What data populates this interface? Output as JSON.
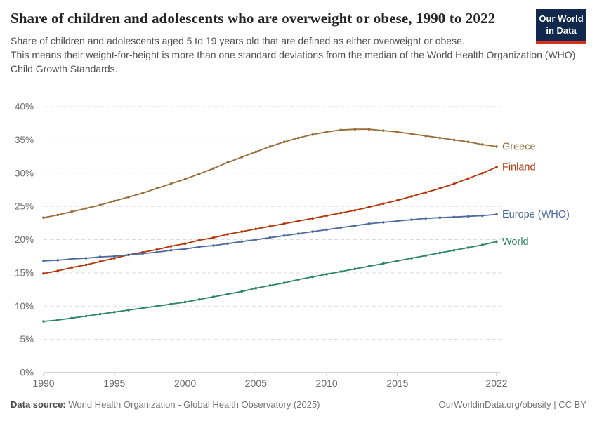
{
  "header": {
    "title": "Share of children and adolescents who are overweight or obese, 1990 to 2022",
    "logo": {
      "line1": "Our World",
      "line2": "in Data"
    }
  },
  "subtitle": {
    "line1": "Share of children and adolescents aged 5 to 19 years old that are defined as either overweight or obese.",
    "line2": "This means their weight-for-height is more than one standard deviations from the median of the World Health Organization (WHO) Child Growth Standards."
  },
  "footer": {
    "source_label": "Data source:",
    "source_text": " World Health Organization - Global Health Observatory (2025)",
    "credit": "OurWorldinData.org/obesity | CC BY"
  },
  "colors": {
    "title": "#242424",
    "subtitle": "#4f4f4f",
    "logo_bg": "#12294E",
    "logo_bar": "#D7301F",
    "grid": "#dadada",
    "axis": "#a8a8a8",
    "tick_text": "#6b6b6b"
  },
  "chart_data": {
    "type": "line",
    "title": "Share of children and adolescents who are overweight or obese, 1990 to 2022",
    "xlabel": "",
    "ylabel": "",
    "xlim": [
      1990,
      2022
    ],
    "ylim": [
      0,
      40
    ],
    "grid": "horizontal-dashed",
    "legend_position": "right-of-line-ends",
    "yticks": [
      0,
      5,
      10,
      15,
      20,
      25,
      30,
      35,
      40
    ],
    "ytick_suffix": "%",
    "xticks": [
      1990,
      1995,
      2000,
      2005,
      2010,
      2015,
      2022
    ],
    "x": [
      1990,
      1991,
      1992,
      1993,
      1994,
      1995,
      1996,
      1997,
      1998,
      1999,
      2000,
      2001,
      2002,
      2003,
      2004,
      2005,
      2006,
      2007,
      2008,
      2009,
      2010,
      2011,
      2012,
      2013,
      2014,
      2015,
      2016,
      2017,
      2018,
      2019,
      2020,
      2021,
      2022
    ],
    "series": [
      {
        "name": "Greece",
        "color": "#996D39",
        "values": [
          23.3,
          23.7,
          24.2,
          24.7,
          25.2,
          25.8,
          26.4,
          27.0,
          27.7,
          28.4,
          29.1,
          29.9,
          30.7,
          31.6,
          32.4,
          33.2,
          34.0,
          34.7,
          35.3,
          35.8,
          36.2,
          36.5,
          36.6,
          36.6,
          36.4,
          36.2,
          35.9,
          35.6,
          35.3,
          35.0,
          34.7,
          34.3,
          34.0
        ]
      },
      {
        "name": "Finland",
        "color": "#B13507",
        "values": [
          14.9,
          15.3,
          15.8,
          16.2,
          16.7,
          17.2,
          17.7,
          18.1,
          18.5,
          19.0,
          19.4,
          19.9,
          20.3,
          20.8,
          21.2,
          21.6,
          22.0,
          22.4,
          22.8,
          23.2,
          23.6,
          24.0,
          24.4,
          24.9,
          25.4,
          25.9,
          26.5,
          27.1,
          27.7,
          28.4,
          29.2,
          30.0,
          30.9
        ]
      },
      {
        "name": "Europe (WHO)",
        "color": "#4C6A9C",
        "values": [
          16.8,
          16.9,
          17.1,
          17.2,
          17.4,
          17.5,
          17.7,
          17.9,
          18.1,
          18.4,
          18.6,
          18.9,
          19.1,
          19.4,
          19.7,
          20.0,
          20.3,
          20.6,
          20.9,
          21.2,
          21.5,
          21.8,
          22.1,
          22.4,
          22.6,
          22.8,
          23.0,
          23.2,
          23.3,
          23.4,
          23.5,
          23.6,
          23.8
        ]
      },
      {
        "name": "World",
        "color": "#2C8465",
        "values": [
          7.7,
          7.9,
          8.2,
          8.5,
          8.8,
          9.1,
          9.4,
          9.7,
          10.0,
          10.3,
          10.6,
          11.0,
          11.4,
          11.8,
          12.2,
          12.7,
          13.1,
          13.5,
          14.0,
          14.4,
          14.8,
          15.2,
          15.6,
          16.0,
          16.4,
          16.8,
          17.2,
          17.6,
          18.0,
          18.4,
          18.8,
          19.2,
          19.7
        ]
      }
    ]
  }
}
